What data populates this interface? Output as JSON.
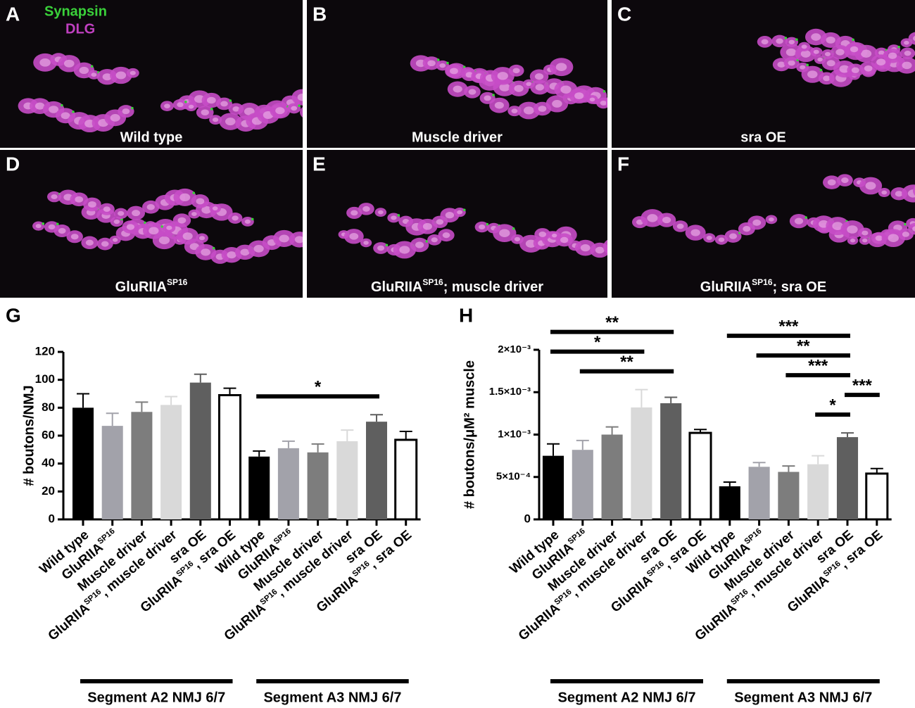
{
  "panels": [
    {
      "letter": "A",
      "caption": "Wild type"
    },
    {
      "letter": "B",
      "caption": "Muscle driver"
    },
    {
      "letter": "C",
      "caption": "sra OE"
    },
    {
      "letter": "D",
      "caption": "GluRIIASP16"
    },
    {
      "letter": "E",
      "caption": "GluRIIASP16; muscle driver"
    },
    {
      "letter": "F",
      "caption": "GluRIIASP16; sra OE"
    }
  ],
  "stain_labels": [
    {
      "text": "Synapsin",
      "color": "#3ad13a"
    },
    {
      "text": "DLG",
      "color": "#c040c0"
    }
  ],
  "chart_data": [
    {
      "type": "bar",
      "letter": "G",
      "y_label": "# boutons/NMJ",
      "categories": [
        "Wild type",
        "GluRIIASP16",
        "Muscle driver",
        "GluRIIASP16, muscle driver",
        "sra OE",
        "GluRIIASP16, sra OE",
        "Wild type",
        "GluRIIASP16",
        "Muscle driver",
        "GluRIIASP16, muscle driver",
        "sra OE",
        "GluRIIASP16, sra OE"
      ],
      "values": [
        80,
        67,
        77,
        82,
        98,
        89,
        45,
        51,
        48,
        56,
        70,
        57
      ],
      "errors": [
        10,
        9,
        7,
        6,
        6,
        5,
        4,
        5,
        6,
        8,
        5,
        6
      ],
      "colors": [
        "#000000",
        "#a2a2aa",
        "#7d7d7d",
        "#d9d9d9",
        "#5f5f5f",
        "#ffffff",
        "#000000",
        "#a2a2aa",
        "#7d7d7d",
        "#d9d9d9",
        "#5f5f5f",
        "#ffffff"
      ],
      "ylim": [
        0,
        120
      ],
      "yticks": [
        0,
        20,
        40,
        60,
        80,
        100,
        120
      ],
      "groups": [
        "Segment A2 NMJ 6/7",
        "Segment A3 NMJ 6/7"
      ],
      "significance": [
        {
          "from": 6,
          "to": 10,
          "label": "*"
        }
      ]
    },
    {
      "type": "bar",
      "letter": "H",
      "y_label": "# boutons/μM² muscle",
      "categories": [
        "Wild type",
        "GluRIIASP16",
        "Muscle driver",
        "GluRIIASP16, muscle driver",
        "sra OE",
        "GluRIIASP16, sra OE",
        "Wild type",
        "GluRIIASP16",
        "Muscle driver",
        "GluRIIASP16, muscle driver",
        "sra OE",
        "GluRIIASP16, sra OE"
      ],
      "values": [
        0.00075,
        0.00082,
        0.001,
        0.00132,
        0.00137,
        0.00102,
        0.00039,
        0.00062,
        0.00056,
        0.00065,
        0.00097,
        0.00054
      ],
      "errors": [
        0.00014,
        0.00011,
        9e-05,
        0.00021,
        7e-05,
        4e-05,
        5e-05,
        5e-05,
        7e-05,
        0.0001,
        5e-05,
        6e-05
      ],
      "colors": [
        "#000000",
        "#a2a2aa",
        "#7d7d7d",
        "#d9d9d9",
        "#5f5f5f",
        "#ffffff",
        "#000000",
        "#a2a2aa",
        "#7d7d7d",
        "#d9d9d9",
        "#5f5f5f",
        "#ffffff"
      ],
      "ylim": [
        0,
        0.002
      ],
      "yticks": [
        0,
        {
          "value": 0.0005,
          "label": "5×10⁻⁴"
        },
        {
          "value": 0.001,
          "label": "1×10⁻³"
        },
        {
          "value": 0.0015,
          "label": "1.5×10⁻³"
        },
        {
          "value": 0.002,
          "label": "2×10⁻³"
        }
      ],
      "groups": [
        "Segment A2 NMJ 6/7",
        "Segment A3 NMJ 6/7"
      ],
      "significance": [
        {
          "from": 1,
          "to": 4,
          "label": "**"
        },
        {
          "from": 0,
          "to": 3,
          "label": "*"
        },
        {
          "from": 0,
          "to": 4,
          "label": "**"
        },
        {
          "from": 9,
          "to": 10,
          "label": "*"
        },
        {
          "from": 10,
          "to": 11,
          "label": "***"
        },
        {
          "from": 8,
          "to": 10,
          "label": "***"
        },
        {
          "from": 7,
          "to": 10,
          "label": "**"
        },
        {
          "from": 6,
          "to": 10,
          "label": "***"
        }
      ]
    }
  ]
}
